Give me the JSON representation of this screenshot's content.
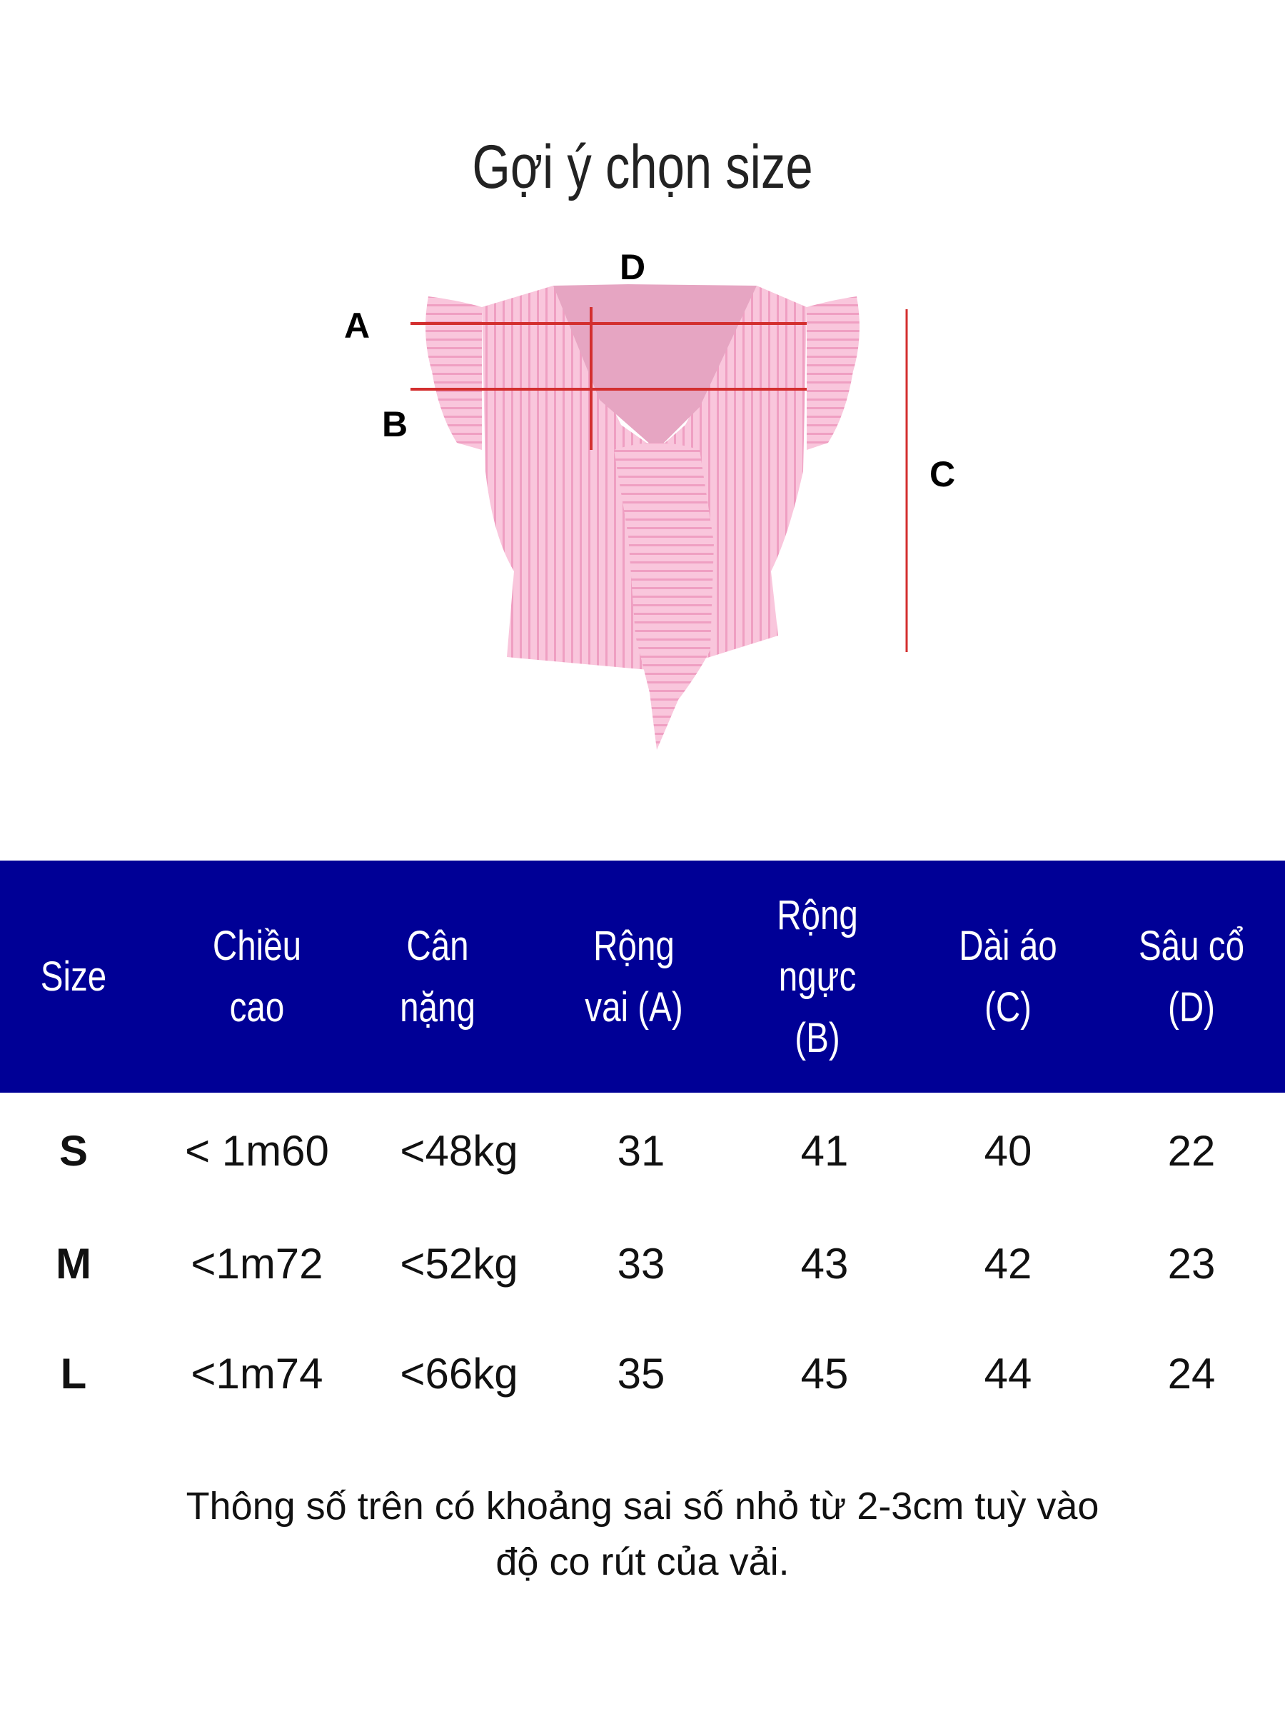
{
  "title": "Gợi ý chọn size",
  "diagram": {
    "labels": {
      "a": "A",
      "b": "B",
      "c": "C",
      "d": "D"
    },
    "garment_color": "#f7b8d2",
    "measure_line_color": "#d32f2f"
  },
  "table": {
    "header_bg": "#000096",
    "headers": [
      "Size",
      "Chiều cao",
      "Cân nặng",
      "Rộng vai (A)",
      "Rộng ngực (B)",
      "Dài áo (C)",
      "Sâu cổ (D)"
    ],
    "rows": [
      [
        "S",
        "< 1m60",
        "<48kg",
        "31",
        "41",
        "40",
        "22"
      ],
      [
        "M",
        "<1m72",
        "<52kg",
        "33",
        "43",
        "42",
        "23"
      ],
      [
        "L",
        "<1m74",
        "<66kg",
        "35",
        "45",
        "44",
        "24"
      ]
    ]
  },
  "note": {
    "line1": "Thông số trên có khoảng sai số nhỏ từ 2-3cm tuỳ vào",
    "line2": "độ co rút của vải."
  }
}
